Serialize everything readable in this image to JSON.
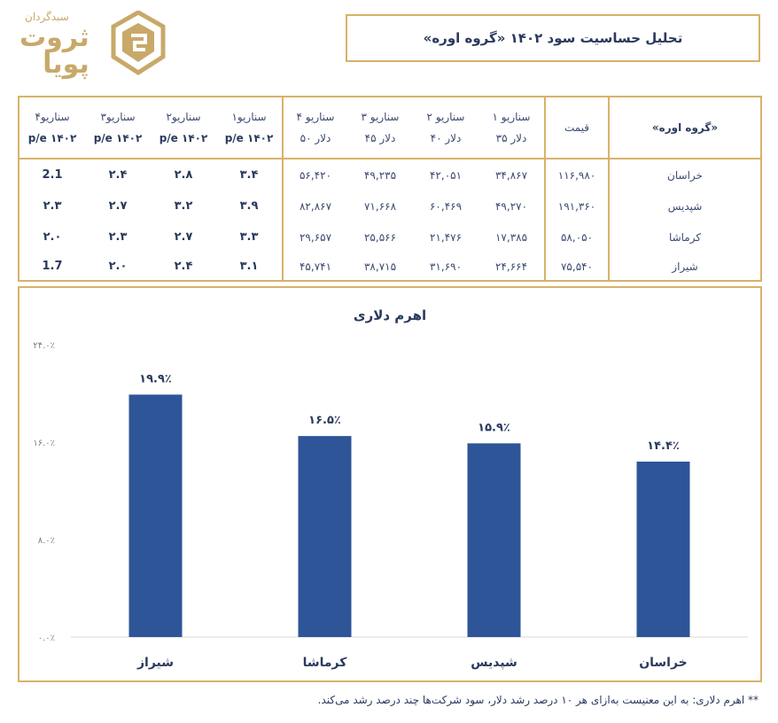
{
  "logo": {
    "subtitle": "سبدگردان",
    "name_line1": "ثروت",
    "name_line2": "پویا"
  },
  "title": "تحلیل حساسیت سود ۱۴۰۲ «گروه اوره»",
  "table": {
    "group_header": "«گروه اوره»",
    "price_header": "قیمت",
    "scenario_headers": [
      {
        "line1": "سناریو ۱",
        "line2": "دلار ۳۵"
      },
      {
        "line1": "سناریو ۲",
        "line2": "دلار ۴۰"
      },
      {
        "line1": "سناریو ۳",
        "line2": "دلار ۴۵"
      },
      {
        "line1": "سناریو ۴",
        "line2": "دلار ۵۰"
      }
    ],
    "pe_headers": [
      {
        "line1": "سناریو۱",
        "line2": "p/e ۱۴۰۲"
      },
      {
        "line1": "سناریو۲",
        "line2": "p/e ۱۴۰۲"
      },
      {
        "line1": "سناریو۳",
        "line2": "p/e ۱۴۰۲"
      },
      {
        "line1": "سناریو۴",
        "line2": "p/e ۱۴۰۲"
      }
    ],
    "rows": [
      {
        "name": "خراسان",
        "price": "۱۱۶,۹۸۰",
        "scenarios": [
          "۳۴,۸۶۷",
          "۴۲,۰۵۱",
          "۴۹,۲۳۵",
          "۵۶,۴۲۰"
        ],
        "pe": [
          "۳.۴",
          "۲.۸",
          "۲.۴",
          "2.1"
        ]
      },
      {
        "name": "شپدیس",
        "price": "۱۹۱,۳۶۰",
        "scenarios": [
          "۴۹,۲۷۰",
          "۶۰,۴۶۹",
          "۷۱,۶۶۸",
          "۸۲,۸۶۷"
        ],
        "pe": [
          "۳.۹",
          "۳.۲",
          "۲.۷",
          "۲.۳"
        ]
      },
      {
        "name": "کرماشا",
        "price": "۵۸,۰۵۰",
        "scenarios": [
          "۱۷,۳۸۵",
          "۲۱,۴۷۶",
          "۲۵,۵۶۶",
          "۲۹,۶۵۷"
        ],
        "pe": [
          "۳.۳",
          "۲.۷",
          "۲.۳",
          "۲.۰"
        ]
      },
      {
        "name": "شیراز",
        "price": "۷۵,۵۴۰",
        "scenarios": [
          "۲۴,۶۶۴",
          "۳۱,۶۹۰",
          "۳۸,۷۱۵",
          "۴۵,۷۴۱"
        ],
        "pe": [
          "۳.۱",
          "۲.۴",
          "۲.۰",
          "1.7"
        ]
      }
    ]
  },
  "chart_data": {
    "type": "bar",
    "title": "اهرم دلاری",
    "categories": [
      "شیراز",
      "کرماشا",
      "شپدیس",
      "خراسان"
    ],
    "values": [
      19.9,
      16.5,
      15.9,
      14.4
    ],
    "value_labels": [
      "۱۹.۹٪",
      "۱۶.۵٪",
      "۱۵.۹٪",
      "۱۴.۴٪"
    ],
    "yticks": [
      0,
      8,
      16,
      24
    ],
    "ytick_labels": [
      "۰.۰٪",
      "۸.۰٪",
      "۱۶.۰٪",
      "۲۴.۰٪"
    ],
    "ylim": [
      0,
      24
    ],
    "grid": false,
    "bar_color": "#2e5597"
  },
  "footnote": "** اهرم دلاری: به این معنیست به‌ازای هر ۱۰ درصد رشد دلار، سود شرکت‌ها چند درصد رشد می‌کند.",
  "colors": {
    "border": "#d8b26a",
    "text": "#2a3a5e",
    "bar": "#2e5597"
  }
}
